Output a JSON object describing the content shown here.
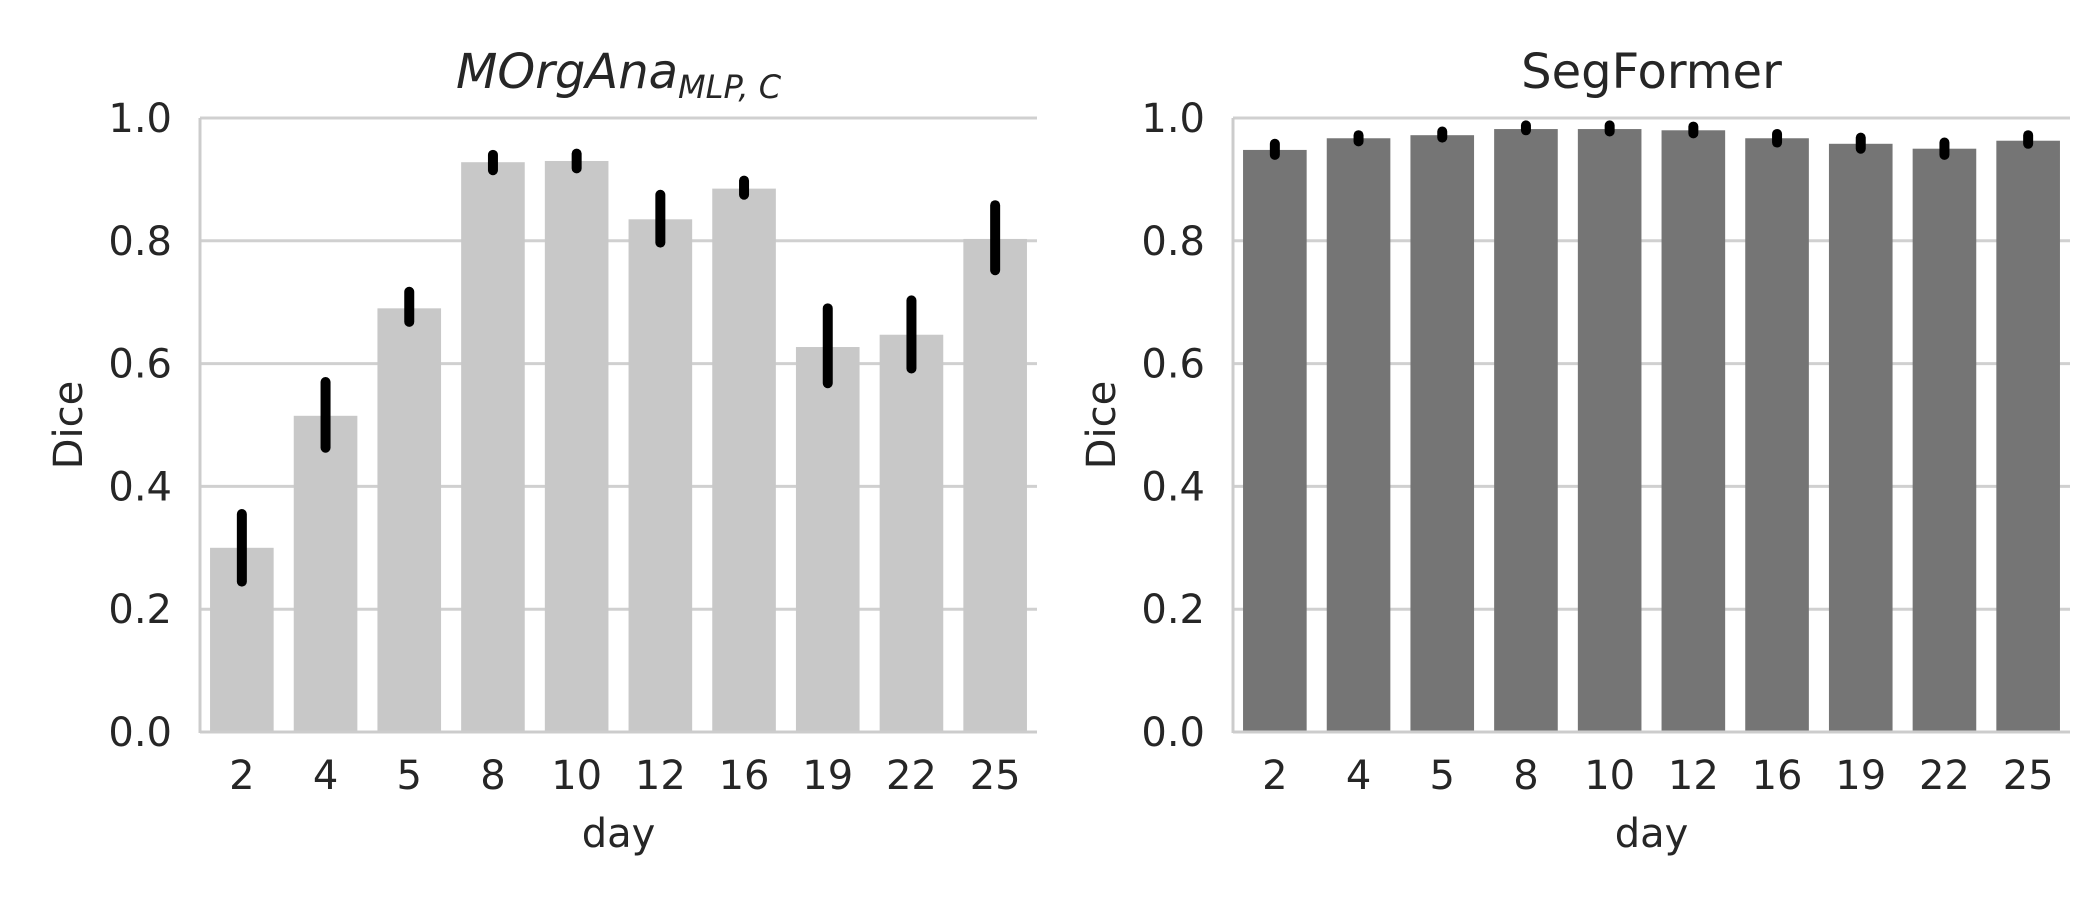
{
  "chart_data": [
    {
      "type": "bar",
      "title_main": "MOrgAna",
      "title_subscript": "MLP, C",
      "xlabel": "day",
      "ylabel": "Dice",
      "ylim": [
        0,
        1.0
      ],
      "yticks": [
        "0.0",
        "0.2",
        "0.4",
        "0.6",
        "0.8",
        "1.0"
      ],
      "grid": "horizontal",
      "categories": [
        "2",
        "4",
        "5",
        "8",
        "10",
        "12",
        "16",
        "19",
        "22",
        "25"
      ],
      "values": [
        0.3,
        0.515,
        0.69,
        0.928,
        0.93,
        0.835,
        0.885,
        0.627,
        0.647,
        0.803
      ],
      "error_low": [
        0.245,
        0.463,
        0.668,
        0.915,
        0.918,
        0.797,
        0.875,
        0.568,
        0.592,
        0.752
      ],
      "error_high": [
        0.355,
        0.57,
        0.717,
        0.94,
        0.942,
        0.875,
        0.898,
        0.69,
        0.703,
        0.858
      ],
      "bar_color": "#c8c8c8",
      "error_color": "#000000"
    },
    {
      "type": "bar",
      "title_main": "SegFormer",
      "title_subscript": "",
      "xlabel": "day",
      "ylabel": "Dice",
      "ylim": [
        0,
        1.0
      ],
      "yticks": [
        "0.0",
        "0.2",
        "0.4",
        "0.6",
        "0.8",
        "1.0"
      ],
      "grid": "horizontal",
      "categories": [
        "2",
        "4",
        "5",
        "8",
        "10",
        "12",
        "16",
        "19",
        "22",
        "25"
      ],
      "values": [
        0.948,
        0.967,
        0.972,
        0.982,
        0.982,
        0.98,
        0.967,
        0.958,
        0.95,
        0.963
      ],
      "error_low": [
        0.94,
        0.962,
        0.968,
        0.98,
        0.978,
        0.975,
        0.96,
        0.95,
        0.94,
        0.958
      ],
      "error_high": [
        0.958,
        0.972,
        0.978,
        0.988,
        0.988,
        0.986,
        0.974,
        0.968,
        0.96,
        0.972
      ],
      "bar_color": "#757575",
      "error_color": "#000000"
    }
  ]
}
